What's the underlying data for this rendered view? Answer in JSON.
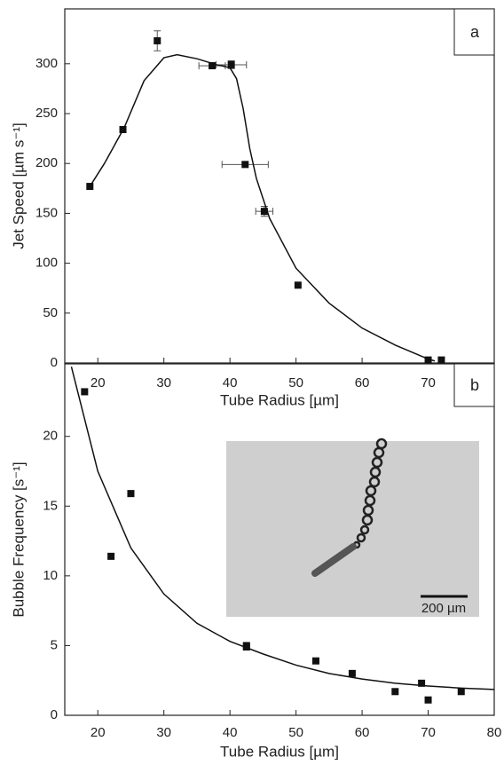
{
  "chart_data": [
    {
      "type": "scatter",
      "panel_label": "a",
      "xlabel": "Tube Radius [µm]",
      "ylabel": "Jet Speed [µm s⁻¹]",
      "xlim": [
        15,
        80
      ],
      "xticks": [
        20,
        30,
        40,
        50,
        60,
        70
      ],
      "ylim": [
        0,
        355
      ],
      "yticks": [
        0,
        50,
        100,
        150,
        200,
        250,
        300
      ],
      "series": [
        {
          "type": "scatter",
          "color": "#111111",
          "x": [
            18.8,
            23.8,
            29,
            37.3,
            40.2,
            42.3,
            45.2,
            50.3,
            70,
            72
          ],
          "values": [
            177,
            234,
            323,
            298,
            299,
            199,
            152,
            78,
            3,
            3
          ],
          "yerr": [
            null,
            null,
            10,
            3,
            4,
            null,
            5,
            null,
            null,
            null
          ],
          "xerr": [
            null,
            null,
            null,
            2,
            2.3,
            3.5,
            1.3,
            null,
            null,
            null
          ]
        },
        {
          "type": "line",
          "color": "#111111",
          "x": [
            18.8,
            21,
            24,
            27,
            30,
            32,
            35,
            38,
            40,
            41,
            42,
            43,
            44,
            46,
            50,
            55,
            60,
            65,
            70,
            71
          ],
          "values": [
            177,
            200,
            236,
            283,
            306,
            309,
            305,
            299,
            296,
            285,
            255,
            215,
            185,
            145,
            95,
            60,
            35,
            18,
            4,
            2
          ]
        }
      ]
    },
    {
      "type": "scatter",
      "panel_label": "b",
      "xlabel": "Tube Radius [µm]",
      "ylabel": "Bubble Frequency [s⁻¹]",
      "inset_scale_label": "200 µm",
      "xlim": [
        15,
        80
      ],
      "xticks": [
        20,
        30,
        40,
        50,
        60,
        70,
        80
      ],
      "ylim": [
        0,
        25.2
      ],
      "yticks": [
        0,
        5,
        10,
        15,
        20
      ],
      "series": [
        {
          "type": "scatter",
          "color": "#111111",
          "x": [
            18,
            22,
            25,
            42.5,
            42.5,
            53,
            58.5,
            65,
            69,
            70,
            75
          ],
          "values": [
            23.2,
            11.4,
            15.9,
            5,
            4.9,
            3.9,
            3,
            1.7,
            2.3,
            1.1,
            1.7
          ]
        },
        {
          "type": "line",
          "color": "#111111",
          "x": [
            16,
            20,
            25,
            30,
            35,
            40,
            45,
            50,
            55,
            60,
            65,
            70,
            75,
            80
          ],
          "values": [
            25,
            17.5,
            12,
            8.7,
            6.6,
            5.3,
            4.4,
            3.6,
            3.0,
            2.6,
            2.3,
            2.1,
            1.95,
            1.85
          ]
        }
      ]
    }
  ]
}
